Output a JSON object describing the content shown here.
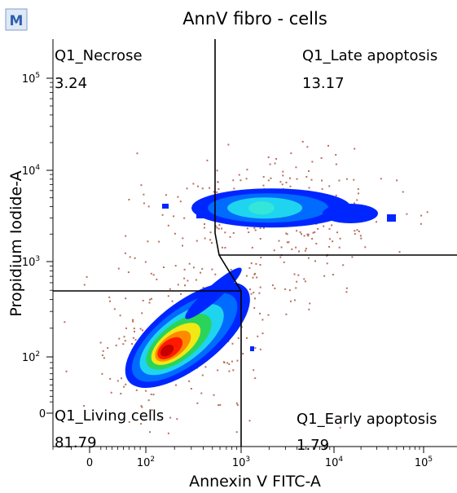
{
  "app": {
    "badge": "M"
  },
  "chart_data": {
    "type": "scatter",
    "title": "AnnV fibro - cells",
    "xlabel": "Annexin V FITC-A",
    "ylabel": "Propidium Iodide-A",
    "x_scale": "biexponential",
    "y_scale": "biexponential",
    "x_ticks": [
      {
        "value": 0,
        "base": "0",
        "exp": ""
      },
      {
        "value": 100,
        "base": "10",
        "exp": "2"
      },
      {
        "value": 1000,
        "base": "10",
        "exp": "3"
      },
      {
        "value": 10000,
        "base": "10",
        "exp": "4"
      },
      {
        "value": 100000,
        "base": "10",
        "exp": "5"
      }
    ],
    "y_ticks": [
      {
        "value": 0,
        "base": "0",
        "exp": ""
      },
      {
        "value": 100,
        "base": "10",
        "exp": "2"
      },
      {
        "value": 1000,
        "base": "10",
        "exp": "3"
      },
      {
        "value": 10000,
        "base": "10",
        "exp": "4"
      },
      {
        "value": 100000,
        "base": "10",
        "exp": "5"
      }
    ],
    "quadrants": [
      {
        "name": "Q1_Necrose",
        "value": "3.24"
      },
      {
        "name": "Q1_Late apoptosis",
        "value": "13.17"
      },
      {
        "name": "Q1_Living cells",
        "value": "81.79"
      },
      {
        "name": "Q1_Early apoptosis",
        "value": "1.79"
      }
    ],
    "density_colors": [
      "#b86f5f",
      "#0026ff",
      "#006bff",
      "#1fd4ef",
      "#2ad45a",
      "#f2e814",
      "#ff8a00",
      "#ff1a00",
      "#c40000"
    ],
    "populations": [
      {
        "name": "",
        "x_center": 130,
        "y_center": 110,
        "count": "high"
      },
      {
        "name": "",
        "x_center": 1800,
        "y_center": 4200,
        "count": "medium"
      }
    ],
    "grid": false,
    "legend": "none"
  }
}
